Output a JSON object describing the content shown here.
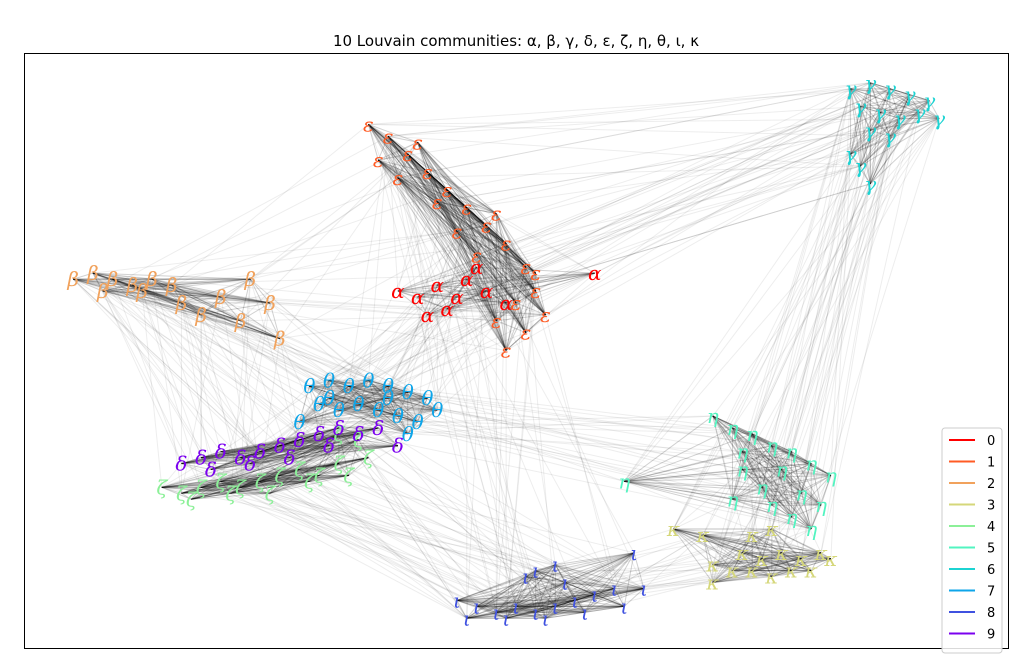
{
  "chart_data": {
    "type": "scatter",
    "title": "10 Louvain communities: α, β, γ, δ, ε, ζ, η, θ, ι, κ",
    "xlabel": "",
    "ylabel": "",
    "axes_ticks": false,
    "legend_position": "lower-right",
    "edge_color": "#000000",
    "series": [
      {
        "name": "0",
        "symbol": "α",
        "color": "#ff0000",
        "points": [
          [
            0.44,
            0.41
          ],
          [
            0.42,
            0.39
          ],
          [
            0.45,
            0.38
          ],
          [
            0.4,
            0.41
          ],
          [
            0.47,
            0.4
          ],
          [
            0.43,
            0.43
          ],
          [
            0.49,
            0.42
          ],
          [
            0.38,
            0.4
          ],
          [
            0.46,
            0.36
          ],
          [
            0.41,
            0.44
          ],
          [
            0.58,
            0.37
          ]
        ]
      },
      {
        "name": "1",
        "symbol": "ε",
        "color": "#ff5b24",
        "points": [
          [
            0.35,
            0.12
          ],
          [
            0.37,
            0.14
          ],
          [
            0.39,
            0.17
          ],
          [
            0.41,
            0.2
          ],
          [
            0.43,
            0.23
          ],
          [
            0.45,
            0.26
          ],
          [
            0.47,
            0.29
          ],
          [
            0.49,
            0.32
          ],
          [
            0.51,
            0.36
          ],
          [
            0.52,
            0.4
          ],
          [
            0.53,
            0.44
          ],
          [
            0.51,
            0.47
          ],
          [
            0.49,
            0.5
          ],
          [
            0.48,
            0.45
          ],
          [
            0.36,
            0.18
          ],
          [
            0.38,
            0.21
          ],
          [
            0.42,
            0.25
          ],
          [
            0.44,
            0.3
          ],
          [
            0.46,
            0.34
          ],
          [
            0.5,
            0.42
          ],
          [
            0.52,
            0.37
          ],
          [
            0.4,
            0.15
          ],
          [
            0.48,
            0.27
          ]
        ]
      },
      {
        "name": "2",
        "symbol": "β",
        "color": "#f1a25c",
        "points": [
          [
            0.05,
            0.38
          ],
          [
            0.07,
            0.37
          ],
          [
            0.09,
            0.38
          ],
          [
            0.11,
            0.39
          ],
          [
            0.13,
            0.38
          ],
          [
            0.15,
            0.39
          ],
          [
            0.08,
            0.4
          ],
          [
            0.12,
            0.4
          ],
          [
            0.16,
            0.42
          ],
          [
            0.18,
            0.44
          ],
          [
            0.2,
            0.41
          ],
          [
            0.23,
            0.38
          ],
          [
            0.22,
            0.45
          ],
          [
            0.25,
            0.42
          ],
          [
            0.26,
            0.48
          ]
        ]
      },
      {
        "name": "3",
        "symbol": "κ",
        "color": "#d5d77a",
        "points": [
          [
            0.73,
            0.84
          ],
          [
            0.75,
            0.85
          ],
          [
            0.77,
            0.84
          ],
          [
            0.79,
            0.85
          ],
          [
            0.81,
            0.84
          ],
          [
            0.74,
            0.87
          ],
          [
            0.76,
            0.88
          ],
          [
            0.78,
            0.87
          ],
          [
            0.8,
            0.87
          ],
          [
            0.82,
            0.85
          ],
          [
            0.72,
            0.87
          ],
          [
            0.7,
            0.86
          ],
          [
            0.66,
            0.8
          ],
          [
            0.69,
            0.81
          ],
          [
            0.74,
            0.81
          ],
          [
            0.7,
            0.89
          ],
          [
            0.76,
            0.8
          ]
        ]
      },
      {
        "name": "4",
        "symbol": "ζ",
        "color": "#8cf098",
        "points": [
          [
            0.14,
            0.73
          ],
          [
            0.16,
            0.74
          ],
          [
            0.18,
            0.73
          ],
          [
            0.2,
            0.72
          ],
          [
            0.22,
            0.73
          ],
          [
            0.24,
            0.72
          ],
          [
            0.26,
            0.71
          ],
          [
            0.28,
            0.7
          ],
          [
            0.3,
            0.71
          ],
          [
            0.32,
            0.69
          ],
          [
            0.17,
            0.75
          ],
          [
            0.21,
            0.74
          ],
          [
            0.25,
            0.74
          ],
          [
            0.29,
            0.72
          ],
          [
            0.33,
            0.71
          ],
          [
            0.35,
            0.68
          ],
          [
            0.32,
            0.64
          ],
          [
            0.34,
            0.65
          ]
        ]
      },
      {
        "name": "5",
        "symbol": "η",
        "color": "#52f4c0",
        "points": [
          [
            0.7,
            0.61
          ],
          [
            0.72,
            0.63
          ],
          [
            0.74,
            0.64
          ],
          [
            0.76,
            0.66
          ],
          [
            0.78,
            0.67
          ],
          [
            0.8,
            0.69
          ],
          [
            0.82,
            0.71
          ],
          [
            0.77,
            0.7
          ],
          [
            0.79,
            0.74
          ],
          [
            0.81,
            0.76
          ],
          [
            0.78,
            0.78
          ],
          [
            0.75,
            0.73
          ],
          [
            0.73,
            0.7
          ],
          [
            0.76,
            0.76
          ],
          [
            0.8,
            0.8
          ],
          [
            0.61,
            0.72
          ],
          [
            0.72,
            0.75
          ],
          [
            0.73,
            0.67
          ]
        ]
      },
      {
        "name": "6",
        "symbol": "γ",
        "color": "#1cd3d2",
        "points": [
          [
            0.84,
            0.06
          ],
          [
            0.86,
            0.05
          ],
          [
            0.88,
            0.06
          ],
          [
            0.9,
            0.07
          ],
          [
            0.92,
            0.08
          ],
          [
            0.85,
            0.09
          ],
          [
            0.87,
            0.1
          ],
          [
            0.89,
            0.11
          ],
          [
            0.91,
            0.1
          ],
          [
            0.93,
            0.11
          ],
          [
            0.86,
            0.13
          ],
          [
            0.88,
            0.14
          ],
          [
            0.84,
            0.17
          ],
          [
            0.85,
            0.19
          ],
          [
            0.86,
            0.22
          ]
        ]
      },
      {
        "name": "7",
        "symbol": "θ",
        "color": "#0ea5e9",
        "points": [
          [
            0.29,
            0.56
          ],
          [
            0.31,
            0.55
          ],
          [
            0.33,
            0.56
          ],
          [
            0.35,
            0.55
          ],
          [
            0.37,
            0.56
          ],
          [
            0.39,
            0.57
          ],
          [
            0.41,
            0.58
          ],
          [
            0.3,
            0.59
          ],
          [
            0.32,
            0.6
          ],
          [
            0.34,
            0.59
          ],
          [
            0.36,
            0.6
          ],
          [
            0.38,
            0.61
          ],
          [
            0.4,
            0.62
          ],
          [
            0.42,
            0.6
          ],
          [
            0.28,
            0.62
          ],
          [
            0.31,
            0.58
          ],
          [
            0.37,
            0.58
          ],
          [
            0.39,
            0.64
          ]
        ]
      },
      {
        "name": "8",
        "symbol": "ι",
        "color": "#3f51e0",
        "points": [
          [
            0.44,
            0.92
          ],
          [
            0.46,
            0.93
          ],
          [
            0.48,
            0.94
          ],
          [
            0.5,
            0.93
          ],
          [
            0.52,
            0.94
          ],
          [
            0.54,
            0.93
          ],
          [
            0.56,
            0.92
          ],
          [
            0.58,
            0.91
          ],
          [
            0.6,
            0.9
          ],
          [
            0.45,
            0.95
          ],
          [
            0.49,
            0.95
          ],
          [
            0.53,
            0.95
          ],
          [
            0.57,
            0.94
          ],
          [
            0.61,
            0.93
          ],
          [
            0.63,
            0.9
          ],
          [
            0.51,
            0.88
          ],
          [
            0.55,
            0.89
          ],
          [
            0.62,
            0.84
          ],
          [
            0.52,
            0.87
          ],
          [
            0.54,
            0.86
          ]
        ]
      },
      {
        "name": "9",
        "symbol": "δ",
        "color": "#7b00ef",
        "points": [
          [
            0.16,
            0.69
          ],
          [
            0.18,
            0.68
          ],
          [
            0.2,
            0.67
          ],
          [
            0.22,
            0.68
          ],
          [
            0.24,
            0.67
          ],
          [
            0.26,
            0.66
          ],
          [
            0.28,
            0.65
          ],
          [
            0.3,
            0.64
          ],
          [
            0.32,
            0.63
          ],
          [
            0.34,
            0.64
          ],
          [
            0.19,
            0.7
          ],
          [
            0.23,
            0.69
          ],
          [
            0.27,
            0.68
          ],
          [
            0.31,
            0.66
          ],
          [
            0.36,
            0.63
          ],
          [
            0.38,
            0.66
          ]
        ]
      }
    ]
  }
}
